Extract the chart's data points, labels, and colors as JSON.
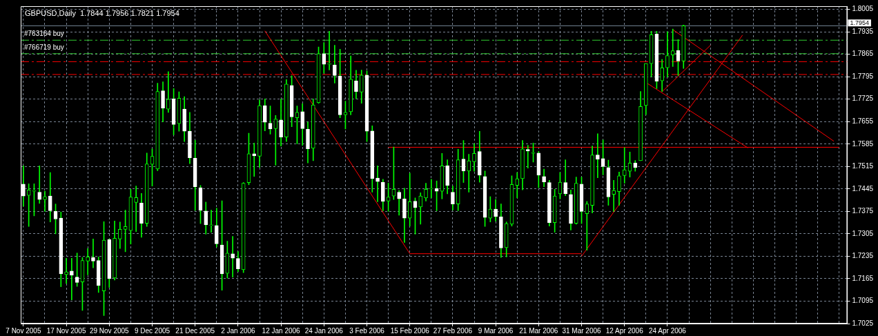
{
  "chart_data": {
    "type": "candlestick",
    "title": "GBPUSD,Daily  1.7844 1.7956 1.7821 1.7954",
    "grid": true,
    "categories": [
      "7 Nov 2005",
      null,
      null,
      null,
      null,
      null,
      null,
      null,
      "17 Nov 2005",
      null,
      null,
      null,
      null,
      null,
      null,
      null,
      "29 Nov 2005",
      null,
      null,
      null,
      null,
      null,
      null,
      null,
      "9 Dec 2005",
      null,
      null,
      null,
      null,
      null,
      null,
      null,
      "21 Dec 2005",
      null,
      null,
      null,
      null,
      null,
      null,
      null,
      "2 Jan 2006",
      null,
      null,
      null,
      null,
      null,
      null,
      null,
      "12 Jan 2006",
      null,
      null,
      null,
      null,
      null,
      null,
      null,
      "24 Jan 2006",
      null,
      null,
      null,
      null,
      null,
      null,
      null,
      "3 Feb 2006",
      null,
      null,
      null,
      null,
      null,
      null,
      null,
      "15 Feb 2006",
      null,
      null,
      null,
      null,
      null,
      null,
      null,
      "27 Feb 2006",
      null,
      null,
      null,
      null,
      null,
      null,
      null,
      "9 Mar 2006",
      null,
      null,
      null,
      null,
      null,
      null,
      null,
      "21 Mar 2006",
      null,
      null,
      null,
      null,
      null,
      null,
      null,
      "31 Mar 2006",
      null,
      null,
      null,
      null,
      null,
      null,
      null,
      "12 Apr 2006",
      null,
      null,
      null,
      null,
      null,
      null,
      null,
      "24 Apr 2006",
      null,
      null,
      null,
      null,
      null,
      null,
      null,
      null,
      null,
      null,
      null,
      null,
      null,
      null,
      null,
      null,
      null,
      null,
      null,
      null,
      null,
      null,
      null,
      null,
      null,
      null,
      null,
      null,
      null,
      null,
      null,
      null,
      null
    ],
    "ohlc": [
      [
        1.746,
        1.7517,
        1.7391,
        1.7423
      ],
      [
        1.7425,
        1.7461,
        1.7328,
        1.7442
      ],
      [
        1.7438,
        1.7461,
        1.7361,
        1.7438
      ],
      [
        1.7435,
        1.7517,
        1.74,
        1.7412
      ],
      [
        1.7412,
        1.7438,
        1.7375,
        1.7421
      ],
      [
        1.7423,
        1.7496,
        1.7342,
        1.7377
      ],
      [
        1.7375,
        1.7398,
        1.7305,
        1.7351
      ],
      [
        1.7354,
        1.7373,
        1.714,
        1.718
      ],
      [
        1.7178,
        1.7229,
        1.715,
        1.7186
      ],
      [
        1.7189,
        1.7229,
        1.7099,
        1.7176
      ],
      [
        1.717,
        1.7245,
        1.7141,
        1.7153
      ],
      [
        1.7155,
        1.7231,
        1.7066,
        1.7222
      ],
      [
        1.722,
        1.7259,
        1.7177,
        1.7233
      ],
      [
        1.7231,
        1.7289,
        1.7199,
        1.722
      ],
      [
        1.7222,
        1.7233,
        1.7122,
        1.7144
      ],
      [
        1.7127,
        1.7343,
        1.705,
        1.7285
      ],
      [
        1.7287,
        1.7289,
        1.7138,
        1.7165
      ],
      [
        1.7167,
        1.7345,
        1.7161,
        1.7291
      ],
      [
        1.7289,
        1.7342,
        1.7259,
        1.7319
      ],
      [
        1.7319,
        1.7379,
        1.7249,
        1.7328
      ],
      [
        1.7315,
        1.7444,
        1.7273,
        1.742
      ],
      [
        1.7403,
        1.7454,
        1.7312,
        1.7418
      ],
      [
        1.7401,
        1.7431,
        1.7294,
        1.7338
      ],
      [
        1.7338,
        1.7557,
        1.7328,
        1.7523
      ],
      [
        1.7522,
        1.757,
        1.7454,
        1.7547
      ],
      [
        1.7507,
        1.7775,
        1.7502,
        1.7749
      ],
      [
        1.7751,
        1.7779,
        1.7654,
        1.7697
      ],
      [
        1.7694,
        1.7811,
        1.7684,
        1.7725
      ],
      [
        1.7726,
        1.7758,
        1.7614,
        1.7646
      ],
      [
        1.7649,
        1.7748,
        1.7625,
        1.7728
      ],
      [
        1.7694,
        1.7733,
        1.7593,
        1.7625
      ],
      [
        1.7625,
        1.7684,
        1.7524,
        1.7542
      ],
      [
        1.7541,
        1.7597,
        1.7378,
        1.7452
      ],
      [
        1.7449,
        1.7456,
        1.7337,
        1.7378
      ],
      [
        1.7376,
        1.7404,
        1.7304,
        1.7333
      ],
      [
        1.7331,
        1.7379,
        1.731,
        1.7331
      ],
      [
        1.7331,
        1.7385,
        1.7264,
        1.7274
      ],
      [
        1.727,
        1.7408,
        1.7129,
        1.718
      ],
      [
        1.7182,
        1.7282,
        1.7167,
        1.7245
      ],
      [
        1.7243,
        1.7297,
        1.717,
        1.7229
      ],
      [
        1.7228,
        1.725,
        1.7187,
        1.7196
      ],
      [
        1.7193,
        1.7465,
        1.7184,
        1.7463
      ],
      [
        1.7465,
        1.7619,
        1.7458,
        1.7555
      ],
      [
        1.7555,
        1.7588,
        1.7484,
        1.7548
      ],
      [
        1.7547,
        1.7723,
        1.7512,
        1.7705
      ],
      [
        1.7705,
        1.7726,
        1.7626,
        1.7653
      ],
      [
        1.765,
        1.7704,
        1.7616,
        1.7632
      ],
      [
        1.7633,
        1.7674,
        1.7519,
        1.7663
      ],
      [
        1.766,
        1.7726,
        1.7579,
        1.7607
      ],
      [
        1.7607,
        1.7786,
        1.7593,
        1.7772
      ],
      [
        1.7768,
        1.7798,
        1.7639,
        1.767
      ],
      [
        1.7667,
        1.7704,
        1.7586,
        1.7684
      ],
      [
        1.7686,
        1.7711,
        1.7581,
        1.7633
      ],
      [
        1.7631,
        1.7654,
        1.7526,
        1.757
      ],
      [
        1.7572,
        1.7726,
        1.7533,
        1.7707
      ],
      [
        1.7714,
        1.7888,
        1.7712,
        1.7867
      ],
      [
        1.7867,
        1.7902,
        1.7806,
        1.7834
      ],
      [
        1.7834,
        1.7937,
        1.7816,
        1.7834
      ],
      [
        1.7832,
        1.7893,
        1.7775,
        1.7799
      ],
      [
        1.7797,
        1.7881,
        1.7667,
        1.7676
      ],
      [
        1.7676,
        1.7719,
        1.7632,
        1.7684
      ],
      [
        1.7686,
        1.786,
        1.7676,
        1.7787
      ],
      [
        1.7782,
        1.7815,
        1.7726,
        1.7749
      ],
      [
        1.7747,
        1.7816,
        1.7712,
        1.78
      ],
      [
        1.78,
        1.7813,
        1.7593,
        1.7625
      ],
      [
        1.7626,
        1.7642,
        1.7435,
        1.7477
      ],
      [
        1.7479,
        1.7517,
        1.7405,
        1.7468
      ],
      [
        1.7466,
        1.7475,
        1.7377,
        1.7406
      ],
      [
        1.7407,
        1.7463,
        1.7375,
        1.742
      ],
      [
        1.7423,
        1.7576,
        1.7412,
        1.7444
      ],
      [
        1.7435,
        1.744,
        1.7363,
        1.7414
      ],
      [
        1.7414,
        1.7447,
        1.7278,
        1.7354
      ],
      [
        1.7354,
        1.7494,
        1.7329,
        1.7405
      ],
      [
        1.7407,
        1.7417,
        1.7304,
        1.7387
      ],
      [
        1.7389,
        1.7433,
        1.7335,
        1.7423
      ],
      [
        1.7417,
        1.7463,
        1.7407,
        1.7444
      ],
      [
        1.7445,
        1.7475,
        1.7417,
        1.7445
      ],
      [
        1.7446,
        1.747,
        1.7377,
        1.7438
      ],
      [
        1.7438,
        1.7556,
        1.7414,
        1.7517
      ],
      [
        1.7517,
        1.7536,
        1.743,
        1.7456
      ],
      [
        1.7435,
        1.7454,
        1.7379,
        1.7398
      ],
      [
        1.7398,
        1.7569,
        1.7377,
        1.7536
      ],
      [
        1.7538,
        1.7596,
        1.7465,
        1.7501
      ],
      [
        1.7501,
        1.7553,
        1.7435,
        1.7533
      ],
      [
        1.753,
        1.7586,
        1.75,
        1.7556
      ],
      [
        1.7562,
        1.7625,
        1.7466,
        1.7488
      ],
      [
        1.7484,
        1.7501,
        1.7328,
        1.7356
      ],
      [
        1.7354,
        1.7421,
        1.7342,
        1.7382
      ],
      [
        1.7382,
        1.7412,
        1.7344,
        1.7359
      ],
      [
        1.7358,
        1.7398,
        1.7231,
        1.7261
      ],
      [
        1.7262,
        1.7342,
        1.7233,
        1.7337
      ],
      [
        1.7335,
        1.7486,
        1.7329,
        1.7459
      ],
      [
        1.7456,
        1.7496,
        1.7417,
        1.7477
      ],
      [
        1.7477,
        1.7596,
        1.7442,
        1.757
      ],
      [
        1.7568,
        1.7581,
        1.751,
        1.7563
      ],
      [
        1.7556,
        1.7588,
        1.7529,
        1.7556
      ],
      [
        1.7557,
        1.7562,
        1.7449,
        1.7488
      ],
      [
        1.7484,
        1.7507,
        1.7452,
        1.7467
      ],
      [
        1.7465,
        1.7472,
        1.7329,
        1.734
      ],
      [
        1.734,
        1.7444,
        1.731,
        1.7423
      ],
      [
        1.743,
        1.7496,
        1.7414,
        1.7466
      ],
      [
        1.7465,
        1.7536,
        1.7424,
        1.743
      ],
      [
        1.7428,
        1.7442,
        1.7317,
        1.7337
      ],
      [
        1.7338,
        1.7482,
        1.7335,
        1.7463
      ],
      [
        1.746,
        1.7482,
        1.7337,
        1.7375
      ],
      [
        1.7368,
        1.7406,
        1.7254,
        1.7398
      ],
      [
        1.7394,
        1.7579,
        1.737,
        1.7551
      ],
      [
        1.7551,
        1.7617,
        1.748,
        1.7538
      ],
      [
        1.754,
        1.7598,
        1.7489,
        1.7515
      ],
      [
        1.7512,
        1.7535,
        1.7394,
        1.742
      ],
      [
        1.7428,
        1.7472,
        1.7375,
        1.744
      ],
      [
        1.7437,
        1.7498,
        1.7394,
        1.7486
      ],
      [
        1.7487,
        1.7574,
        1.7463,
        1.7505
      ],
      [
        1.75,
        1.756,
        1.7482,
        1.7526
      ],
      [
        1.7526,
        1.7534,
        1.75,
        1.7512
      ],
      [
        1.7533,
        1.7749,
        1.7533,
        1.7702
      ],
      [
        1.7705,
        1.7836,
        1.7677,
        1.7836
      ],
      [
        1.7836,
        1.7937,
        1.7795,
        1.7926
      ],
      [
        1.7928,
        1.7937,
        1.7758,
        1.7781
      ],
      [
        1.7782,
        1.7849,
        1.7749,
        1.7823
      ],
      [
        1.7823,
        1.7935,
        1.7794,
        1.7861
      ],
      [
        1.7863,
        1.7944,
        1.7827,
        1.7876
      ],
      [
        1.7877,
        1.7911,
        1.7799,
        1.7844
      ],
      [
        1.7844,
        1.7956,
        1.7821,
        1.7954
      ],
      null,
      null,
      null,
      null,
      null,
      null,
      null,
      null,
      null,
      null,
      null,
      null,
      null,
      null,
      null,
      null,
      null,
      null,
      null,
      null,
      null,
      null,
      null,
      null,
      null,
      null,
      null,
      null,
      null,
      null
    ],
    "series": [
      {
        "type": "line",
        "color": "#ff0000",
        "values": [
          null,
          null,
          null,
          null,
          null,
          null,
          null,
          null,
          null,
          null,
          null,
          null,
          null,
          null,
          null,
          null,
          null,
          null,
          null,
          null,
          null,
          null,
          null,
          null,
          null,
          null,
          null,
          null,
          null,
          null,
          null,
          null,
          null,
          null,
          null,
          null,
          null,
          null,
          null,
          null,
          null,
          null,
          null,
          null,
          null,
          1.7938,
          null,
          null,
          null,
          null,
          null,
          null,
          null,
          null,
          null,
          null,
          null,
          null,
          null,
          null,
          null,
          null,
          null,
          null,
          null,
          null,
          null,
          null,
          null,
          null,
          null,
          null,
          1.7243,
          null,
          null,
          null,
          null,
          null,
          null,
          null,
          null,
          null,
          null,
          null,
          null,
          null,
          null,
          null,
          null,
          null,
          null,
          null,
          null,
          null,
          null,
          null,
          null,
          null,
          null,
          null,
          null,
          null,
          null,
          null,
          null,
          null,
          null,
          null,
          null,
          null,
          null,
          null,
          null,
          null,
          null,
          null,
          null,
          null,
          null,
          null,
          null,
          null,
          null,
          null,
          null,
          null,
          null,
          null,
          null,
          null,
          null,
          null,
          null,
          null,
          null,
          null,
          null,
          null,
          null,
          null,
          null,
          null,
          null,
          null,
          null,
          null,
          null,
          null,
          null,
          null,
          null,
          null,
          null,
          null
        ]
      },
      {
        "type": "line",
        "color": "#ff0000",
        "values": [
          null,
          null,
          null,
          null,
          null,
          null,
          null,
          null,
          null,
          null,
          null,
          null,
          null,
          null,
          null,
          null,
          null,
          null,
          null,
          null,
          null,
          null,
          null,
          null,
          null,
          null,
          null,
          null,
          null,
          null,
          null,
          null,
          null,
          null,
          null,
          null,
          null,
          null,
          null,
          null,
          null,
          null,
          null,
          null,
          null,
          null,
          null,
          null,
          null,
          null,
          null,
          null,
          null,
          null,
          null,
          null,
          null,
          null,
          null,
          null,
          null,
          null,
          null,
          null,
          null,
          null,
          null,
          null,
          null,
          null,
          null,
          null,
          1.7243,
          null,
          null,
          null,
          null,
          null,
          null,
          null,
          null,
          null,
          null,
          null,
          null,
          null,
          null,
          null,
          null,
          null,
          null,
          null,
          null,
          null,
          null,
          null,
          null,
          null,
          null,
          null,
          null,
          null,
          null,
          null,
          1.7243,
          null,
          null,
          null,
          null,
          null,
          null,
          null,
          null,
          null,
          null,
          null,
          null,
          null,
          null,
          null,
          null,
          null,
          null,
          null,
          null,
          null,
          null,
          null,
          null,
          null,
          null,
          null,
          null,
          null,
          null,
          null,
          null,
          null,
          null,
          null,
          null,
          null,
          null,
          null,
          null,
          null,
          null,
          null,
          null,
          null,
          null,
          null,
          null,
          null
        ]
      },
      {
        "type": "line",
        "color": "#ff0000",
        "values": [
          null,
          null,
          null,
          null,
          null,
          null,
          null,
          null,
          null,
          null,
          null,
          null,
          null,
          null,
          null,
          null,
          null,
          null,
          null,
          null,
          null,
          null,
          null,
          null,
          null,
          null,
          null,
          null,
          null,
          null,
          null,
          null,
          null,
          null,
          null,
          null,
          null,
          null,
          null,
          null,
          null,
          null,
          null,
          null,
          null,
          null,
          null,
          null,
          null,
          null,
          null,
          null,
          null,
          null,
          null,
          null,
          null,
          null,
          null,
          null,
          null,
          null,
          null,
          null,
          null,
          null,
          null,
          null,
          null,
          null,
          null,
          null,
          null,
          null,
          null,
          null,
          null,
          null,
          null,
          null,
          null,
          null,
          null,
          null,
          null,
          null,
          null,
          null,
          null,
          null,
          null,
          null,
          null,
          null,
          null,
          null,
          null,
          null,
          null,
          null,
          null,
          null,
          null,
          null,
          1.7235,
          null,
          null,
          null,
          null,
          null,
          null,
          null,
          null,
          null,
          null,
          null,
          null,
          null,
          null,
          null,
          null,
          null,
          null,
          null,
          null,
          null,
          null,
          null,
          null,
          null,
          null,
          null,
          null,
          null,
          1.7925,
          null,
          null,
          null,
          null,
          null,
          null,
          null,
          null,
          null,
          null,
          null,
          null,
          null,
          null,
          null,
          null,
          null,
          null,
          null
        ]
      },
      {
        "type": "line",
        "color": "#ff0000",
        "values": [
          null,
          null,
          null,
          null,
          null,
          null,
          null,
          null,
          null,
          null,
          null,
          null,
          null,
          null,
          null,
          null,
          null,
          null,
          null,
          null,
          null,
          null,
          null,
          null,
          null,
          null,
          null,
          null,
          null,
          null,
          null,
          null,
          null,
          null,
          null,
          null,
          null,
          null,
          null,
          null,
          null,
          null,
          null,
          null,
          null,
          null,
          null,
          null,
          null,
          null,
          null,
          null,
          null,
          null,
          null,
          null,
          null,
          null,
          null,
          null,
          null,
          null,
          null,
          null,
          null,
          null,
          null,
          null,
          1.7575,
          null,
          null,
          null,
          null,
          null,
          null,
          null,
          null,
          null,
          null,
          null,
          null,
          null,
          null,
          null,
          null,
          null,
          null,
          null,
          null,
          null,
          null,
          null,
          null,
          null,
          null,
          null,
          null,
          null,
          null,
          null,
          null,
          null,
          null,
          null,
          null,
          null,
          null,
          null,
          null,
          null,
          null,
          null,
          null,
          null,
          null,
          null,
          null,
          null,
          null,
          null,
          null,
          null,
          null,
          null,
          null,
          null,
          null,
          null,
          null,
          null,
          null,
          null,
          null,
          null,
          null,
          null,
          null,
          null,
          null,
          null,
          null,
          null,
          null,
          null,
          null,
          null,
          null,
          null,
          null,
          null,
          null,
          null,
          1.7575,
          null
        ]
      },
      {
        "type": "line",
        "color": "#ff0000",
        "values": [
          null,
          null,
          null,
          null,
          null,
          null,
          null,
          null,
          null,
          null,
          null,
          null,
          null,
          null,
          null,
          null,
          null,
          null,
          null,
          null,
          null,
          null,
          null,
          null,
          null,
          null,
          null,
          null,
          null,
          null,
          null,
          null,
          null,
          null,
          null,
          null,
          null,
          null,
          null,
          null,
          null,
          null,
          null,
          null,
          null,
          null,
          null,
          null,
          null,
          null,
          null,
          null,
          null,
          null,
          null,
          null,
          null,
          null,
          null,
          null,
          null,
          null,
          null,
          null,
          null,
          null,
          null,
          null,
          null,
          null,
          null,
          null,
          null,
          null,
          null,
          null,
          null,
          null,
          null,
          null,
          null,
          null,
          null,
          null,
          null,
          null,
          null,
          null,
          null,
          null,
          null,
          null,
          null,
          null,
          null,
          null,
          null,
          null,
          null,
          null,
          null,
          null,
          null,
          null,
          null,
          null,
          null,
          null,
          null,
          null,
          null,
          null,
          null,
          null,
          null,
          null,
          null,
          null,
          null,
          null,
          null,
          1.7942,
          null,
          null,
          null,
          null,
          null,
          null,
          null,
          null,
          null,
          null,
          null,
          null,
          null,
          null,
          null,
          null,
          null,
          null,
          null,
          null,
          null,
          null,
          null,
          null,
          null,
          null,
          null,
          null,
          null,
          1.7594,
          null,
          null
        ]
      },
      {
        "type": "line",
        "color": "#ff0000",
        "values": [
          null,
          null,
          null,
          null,
          null,
          null,
          null,
          null,
          null,
          null,
          null,
          null,
          null,
          null,
          null,
          null,
          null,
          null,
          null,
          null,
          null,
          null,
          null,
          null,
          null,
          null,
          null,
          null,
          null,
          null,
          null,
          null,
          null,
          null,
          null,
          null,
          null,
          null,
          null,
          null,
          null,
          null,
          null,
          null,
          null,
          null,
          null,
          null,
          null,
          null,
          null,
          null,
          null,
          null,
          null,
          null,
          null,
          null,
          null,
          null,
          null,
          null,
          null,
          null,
          null,
          null,
          null,
          null,
          null,
          null,
          null,
          null,
          null,
          null,
          null,
          null,
          null,
          null,
          null,
          null,
          null,
          null,
          null,
          null,
          null,
          null,
          null,
          null,
          null,
          null,
          null,
          null,
          null,
          null,
          null,
          null,
          null,
          null,
          null,
          null,
          null,
          null,
          null,
          null,
          null,
          null,
          null,
          null,
          null,
          null,
          null,
          null,
          null,
          null,
          null,
          null,
          1.7777,
          null,
          null,
          null,
          null,
          null,
          null,
          null,
          null,
          null,
          null,
          null,
          null,
          null,
          null,
          null,
          null,
          null,
          null,
          1.7573,
          null,
          null,
          null,
          null,
          null,
          null,
          null,
          null,
          null,
          null,
          null,
          null,
          null,
          null,
          null,
          null,
          null,
          null
        ]
      },
      {
        "type": "line",
        "color": "#ff0000",
        "values": [
          null,
          null,
          null,
          null,
          null,
          null,
          null,
          null,
          null,
          null,
          null,
          null,
          null,
          null,
          null,
          null,
          null,
          null,
          null,
          null,
          null,
          null,
          null,
          null,
          null,
          null,
          null,
          null,
          null,
          null,
          null,
          null,
          null,
          null,
          null,
          null,
          null,
          null,
          null,
          null,
          null,
          null,
          null,
          null,
          null,
          null,
          null,
          null,
          null,
          null,
          null,
          null,
          null,
          null,
          null,
          null,
          null,
          null,
          null,
          null,
          null,
          null,
          null,
          null,
          null,
          null,
          null,
          null,
          null,
          null,
          null,
          null,
          null,
          null,
          null,
          null,
          null,
          null,
          null,
          null,
          null,
          null,
          null,
          null,
          null,
          null,
          null,
          null,
          null,
          null,
          null,
          null,
          null,
          null,
          null,
          null,
          null,
          null,
          null,
          null,
          null,
          null,
          null,
          null,
          null,
          null,
          null,
          null,
          null,
          null,
          null,
          null,
          null,
          null,
          null,
          null,
          null,
          null,
          null,
          1.7748,
          null,
          null,
          null,
          null,
          null,
          null,
          null,
          null,
          1.7893,
          null,
          null,
          null,
          null,
          null,
          null,
          null,
          null,
          null,
          null,
          null,
          null,
          null,
          null,
          null,
          null,
          null,
          null,
          null,
          null,
          null,
          null,
          null,
          null,
          null
        ]
      }
    ],
    "ylim": [
      1.7025,
      1.8015
    ],
    "yticks": [
      1.7025,
      1.7095,
      1.7165,
      1.7235,
      1.7305,
      1.7375,
      1.7445,
      1.7515,
      1.7585,
      1.7655,
      1.7725,
      1.7795,
      1.7865,
      1.7935,
      1.8005
    ],
    "ref_lines": [
      {
        "axis": "y",
        "value": 1.7954,
        "label": "1.7954",
        "color": "#778899",
        "line_style": "solid"
      },
      {
        "axis": "y",
        "value": 1.7909,
        "label": "#763164 buy",
        "color": "#32cd32",
        "line_style": "dashed"
      },
      {
        "axis": "y",
        "value": 1.7867,
        "label": "#766719 buy",
        "color": "#32cd32",
        "line_style": "dashed"
      },
      {
        "axis": "y",
        "value": 1.7842,
        "color": "#ff0000",
        "line_style": "dashed"
      },
      {
        "axis": "y",
        "value": 1.7802,
        "color": "#ff0000",
        "line_style": "dashed"
      }
    ]
  }
}
